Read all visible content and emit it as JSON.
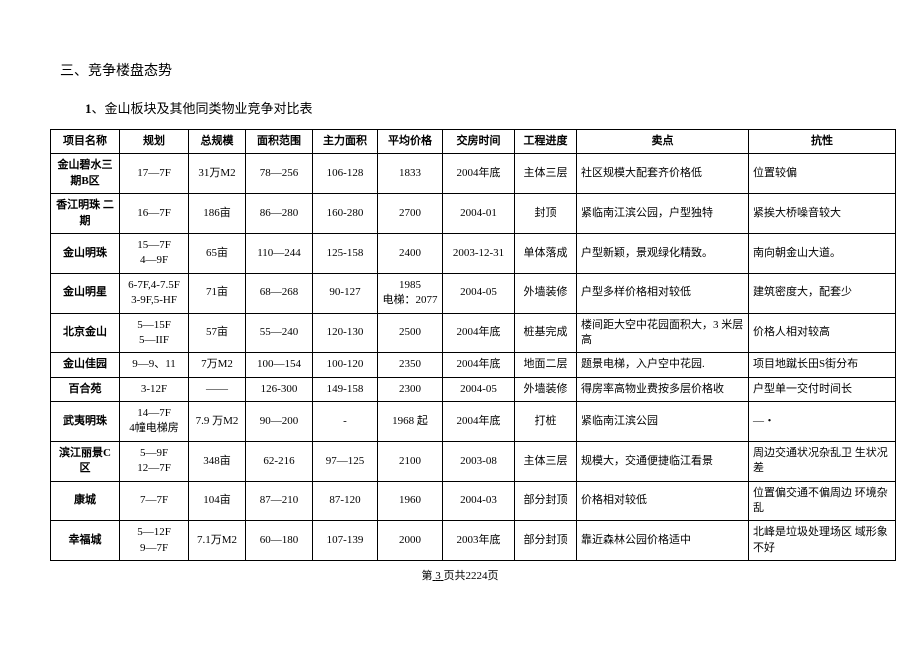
{
  "section_title": "三、竞争楼盘态势",
  "subsection_number": "1",
  "subsection_title": "、金山板块及其他同类物业竞争对比表",
  "headers": {
    "name": "项目名称",
    "plan": "规划",
    "scale": "总规模",
    "area": "面积范围",
    "main": "主力面积",
    "price": "平均价格",
    "delivery": "交房时间",
    "progress": "工程进度",
    "selling": "卖点",
    "resist": "抗性"
  },
  "rows": [
    {
      "name": "金山碧水三期B区",
      "plan": "17—7F",
      "scale": "31万M2",
      "area": "78—256",
      "main": "106-128",
      "price": "1833",
      "delivery": "2004年底",
      "progress": "主体三层",
      "selling": "社区规模大配套齐价格低",
      "resist": "位置较偏"
    },
    {
      "name": "香江明珠 二期",
      "plan": "16—7F",
      "scale": "186亩",
      "area": "86—280",
      "main": "160-280",
      "price": "2700",
      "delivery": "2004-01",
      "progress": "封顶",
      "selling": "紧临南江滨公园，户型独特",
      "resist": "紧挨大桥噪音较大"
    },
    {
      "name": "金山明珠",
      "plan": "15—7F\n4—9F",
      "scale": "65亩",
      "area": "110—244",
      "main": "125-158",
      "price": "2400",
      "delivery": "2003-12-31",
      "progress": "单体落成",
      "selling": "户型新颖，景观绿化精致。",
      "resist": "南向朝金山大道。"
    },
    {
      "name": "金山明星",
      "plan": "6-7F,4-7.5F\n3-9F,5-HF",
      "scale": "71亩",
      "area": "68—268",
      "main": "90-127",
      "price": "1985\n电梯：2077",
      "delivery": "2004-05",
      "progress": "外墙装修",
      "selling": "户型多样价格相对较低",
      "resist": "建筑密度大，配套少"
    },
    {
      "name": "北京金山",
      "plan": "5—15F\n5—IIF",
      "scale": "57亩",
      "area": "55—240",
      "main": "120-130",
      "price": "2500",
      "delivery": "2004年底",
      "progress": "桩基完成",
      "selling": "楼间距大空中花园面积大，3 米层高",
      "resist": "价格人相对较高"
    },
    {
      "name": "金山佳园",
      "plan": "9—9、11",
      "scale": "7万M2",
      "area": "100—154",
      "main": "100-120",
      "price": "2350",
      "delivery": "2004年底",
      "progress": "地面二层",
      "selling": "题景电梯，入户空中花园.",
      "resist": "项目地蹴长田S街分布"
    },
    {
      "name": "百合苑",
      "plan": "3-12F",
      "scale": "——",
      "area": "126-300",
      "main": "149-158",
      "price": "2300",
      "delivery": "2004-05",
      "progress": "外墙装修",
      "selling": "得房率高物业费按多层价格收",
      "resist": "户型单一交付时间长"
    },
    {
      "name": "武夷明珠",
      "plan": "14—7F\n4幢电梯房",
      "scale": "7.9 万M2",
      "area": "90—200",
      "main": "-",
      "price": "1968 起",
      "delivery": "2004年底",
      "progress": "打桩",
      "selling": "紧临南江滨公园",
      "resist": "—・"
    },
    {
      "name": "滨江丽景C区",
      "plan": "5—9F\n12—7F",
      "scale": "348亩",
      "area": "62-216",
      "main": "97—125",
      "price": "2100",
      "delivery": "2003-08",
      "progress": "主体三层",
      "selling": "规模大，交通便捷临江看景",
      "resist": "周边交通状况杂乱卫 生状况差"
    },
    {
      "name": "康城",
      "plan": "7—7F",
      "scale": "104亩",
      "area": "87—210",
      "main": "87-120",
      "price": "1960",
      "delivery": "2004-03",
      "progress": "部分封顶",
      "selling": "价格相对较低",
      "resist": "位置偏交通不偏周边 环境杂乱"
    },
    {
      "name": "幸福城",
      "plan": "5—12F\n9—7F",
      "scale": "7.1万M2",
      "area": "60—180",
      "main": "107-139",
      "price": "2000",
      "delivery": "2003年底",
      "progress": "部分封顶",
      "selling": "靠近森林公园价格适中",
      "resist": "北峰是垃圾处理场区 域形象不好"
    }
  ],
  "footer": {
    "prefix": "第",
    "page": "3",
    "mid": "页共",
    "total": "2224",
    "suffix": "页"
  }
}
